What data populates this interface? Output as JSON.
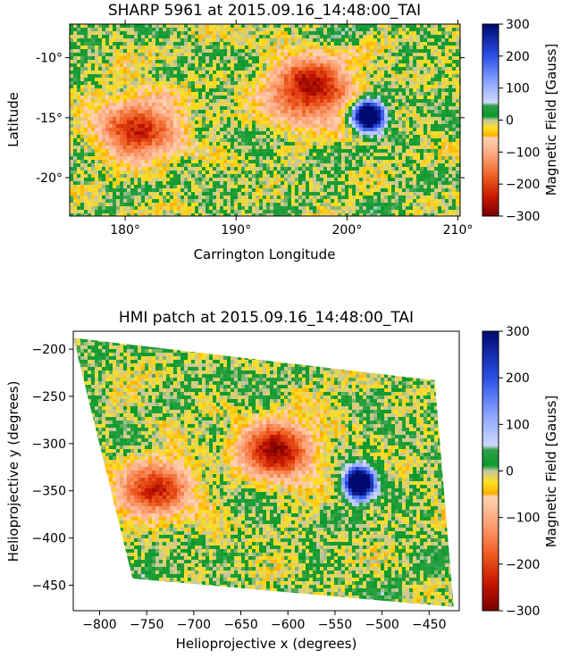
{
  "chart_data": [
    {
      "type": "heatmap",
      "title": "SHARP 5961 at 2015.09.16_14:48:00_TAI",
      "xlabel": "Carrington Longitude",
      "ylabel": "Latitude",
      "xlim": [
        175,
        210.2
      ],
      "ylim": [
        -23.2,
        -7.2
      ],
      "x_ticks": [
        "180°",
        "190°",
        "200°",
        "210°"
      ],
      "y_ticks": [
        "-10°",
        "-15°",
        "-20°"
      ],
      "x_tick_values": [
        180,
        190,
        200,
        210
      ],
      "y_tick_values": [
        -10,
        -15,
        -20
      ],
      "colorbar": {
        "label": "Magnetic Field [Gauss]",
        "range": [
          -300,
          300
        ],
        "ticks": [
          "300",
          "200",
          "100",
          "0",
          "−100",
          "−200",
          "−300"
        ],
        "tick_values": [
          300,
          200,
          100,
          0,
          -100,
          -200,
          -300
        ]
      },
      "features": [
        {
          "kind": "sunspot",
          "polarity": "positive",
          "x": 201.8,
          "y": -14.7,
          "peak": 300
        },
        {
          "kind": "plage",
          "polarity": "negative",
          "x": 196.5,
          "y": -12.5,
          "peak": -300
        },
        {
          "kind": "plage",
          "polarity": "negative",
          "x": 181,
          "y": -15.7,
          "peak": -250
        }
      ]
    },
    {
      "type": "heatmap",
      "title": "HMI patch at 2015.09.16_14:48:00_TAI",
      "xlabel": "Helioprojective x (degrees)",
      "ylabel": "Helioprojective y (degrees)",
      "xlim": [
        -828,
        -418
      ],
      "ylim": [
        -477,
        -181
      ],
      "x_ticks": [
        "−800",
        "−750",
        "−700",
        "−650",
        "−600",
        "−550",
        "−500",
        "−450"
      ],
      "y_ticks": [
        "−200",
        "−250",
        "−300",
        "−350",
        "−400",
        "−450"
      ],
      "x_tick_values": [
        -800,
        -750,
        -700,
        -650,
        -600,
        -550,
        -500,
        -450
      ],
      "y_tick_values": [
        -200,
        -250,
        -300,
        -350,
        -400,
        -450
      ],
      "colorbar": {
        "label": "Magnetic Field [Gauss]",
        "range": [
          -300,
          300
        ],
        "ticks": [
          "300",
          "200",
          "100",
          "0",
          "−100",
          "−200",
          "−300"
        ],
        "tick_values": [
          300,
          200,
          100,
          0,
          -100,
          -200,
          -300
        ]
      },
      "patch_corners": [
        [
          -828,
          -188
        ],
        [
          -444,
          -233
        ],
        [
          -424,
          -473
        ],
        [
          -765,
          -443
        ]
      ],
      "features": [
        {
          "kind": "sunspot",
          "polarity": "positive",
          "x": -526,
          "y": -340,
          "peak": 300
        },
        {
          "kind": "plage",
          "polarity": "negative",
          "x": -612,
          "y": -305,
          "peak": -300
        },
        {
          "kind": "plage",
          "polarity": "negative",
          "x": -742,
          "y": -345,
          "peak": -250
        }
      ]
    }
  ],
  "colormap": {
    "stops": [
      {
        "v": -300,
        "color": "#7a0000"
      },
      {
        "v": -240,
        "color": "#c81800"
      },
      {
        "v": -180,
        "color": "#ee5a1e"
      },
      {
        "v": -120,
        "color": "#fb9b6c"
      },
      {
        "v": -55,
        "color": "#ffd3b4"
      },
      {
        "v": -49,
        "color": "#ffae00"
      },
      {
        "v": -25,
        "color": "#ffe020"
      },
      {
        "v": 0,
        "color": "#c6c6a0"
      },
      {
        "v": 12,
        "color": "#0a9a2a"
      },
      {
        "v": 45,
        "color": "#30a046"
      },
      {
        "v": 55,
        "color": "#cfd8ff"
      },
      {
        "v": 120,
        "color": "#8aa4ff"
      },
      {
        "v": 200,
        "color": "#2a50e6"
      },
      {
        "v": 300,
        "color": "#000a6e"
      }
    ]
  }
}
